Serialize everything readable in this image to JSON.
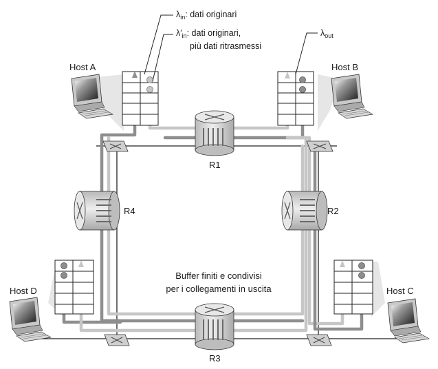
{
  "legend": {
    "lambda_in_symbol": "λ",
    "lambda_in_sub": "in",
    "lambda_in_text": ": dati originari",
    "lambda_in2_symbol": "λ′",
    "lambda_in2_sub": "in",
    "lambda_in2_text": ": dati  originari,",
    "lambda_in2_text_line2": "più dati ritrasmessi",
    "lambda_out_symbol": "λ",
    "lambda_out_sub": "out"
  },
  "hosts": {
    "a": "Host A",
    "b": "Host B",
    "c": "Host C",
    "d": "Host D"
  },
  "routers": {
    "r1": "R1",
    "r2": "R2",
    "r3": "R3",
    "r4": "R4"
  },
  "buffer_note": {
    "line1": "Buffer finiti e condivisi",
    "line2": "per i collegamenti in uscita"
  },
  "colors": {
    "flow_dark": "#8e8e8e",
    "flow_light": "#c6c6c6",
    "line": "#222222",
    "router_fill": "#dcdcdc"
  }
}
